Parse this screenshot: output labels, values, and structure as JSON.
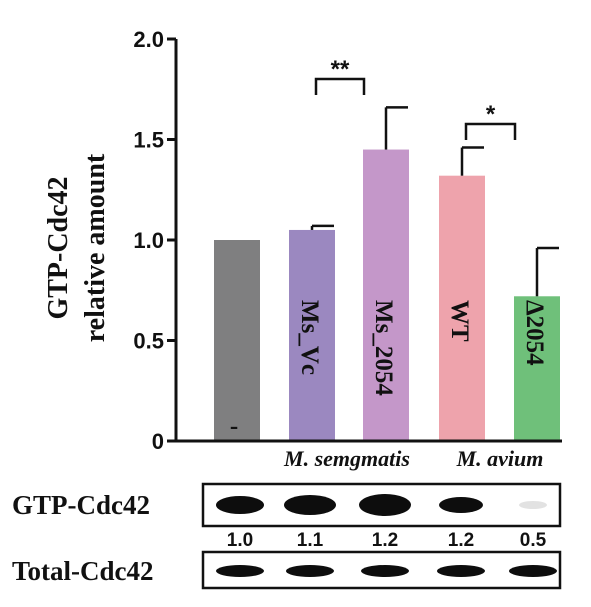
{
  "chart_data": {
    "type": "bar",
    "ylabel_lines": [
      "GTP-Cdc42",
      "relative amount"
    ],
    "ylim": [
      0,
      2.0
    ],
    "yticks": [
      "0",
      "0.5",
      "1.0",
      "1.5",
      "2.0"
    ],
    "ytick_values": [
      0,
      0.5,
      1.0,
      1.5,
      2.0
    ],
    "bars": [
      {
        "label": "-",
        "value": 1.0,
        "error": 0,
        "color": "#7f7f80"
      },
      {
        "label": "Ms_Vc",
        "value": 1.05,
        "error": 0.02,
        "color": "#9b88c0"
      },
      {
        "label": "Ms_2054",
        "value": 1.45,
        "error": 0.21,
        "color": "#c497c9"
      },
      {
        "label": "WT",
        "value": 1.32,
        "error": 0.14,
        "color": "#eea3ac"
      },
      {
        "label": "Δ2054",
        "value": 0.72,
        "error": 0.24,
        "color": "#6fc07a"
      }
    ],
    "groups": [
      {
        "label": "M. semgmatis",
        "bars": [
          1,
          2
        ]
      },
      {
        "label": "M. avium",
        "bars": [
          3,
          4
        ]
      }
    ],
    "significance": [
      {
        "from": 1,
        "to": 2,
        "label": "**"
      },
      {
        "from": 3,
        "to": 4,
        "label": "*"
      }
    ]
  },
  "blot": {
    "rows": [
      {
        "label": "GTP-Cdc42"
      },
      {
        "label": "Total-Cdc42"
      }
    ],
    "quantification": [
      "1.0",
      "1.1",
      "1.2",
      "1.2",
      "0.5"
    ]
  }
}
